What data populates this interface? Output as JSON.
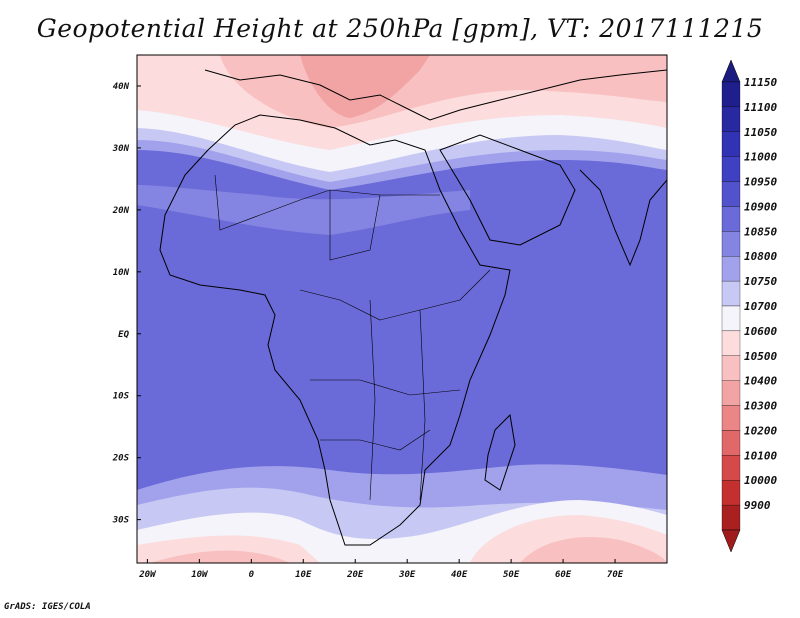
{
  "title": "Geopotential Height at 250hPa [gpm], VT: 2017111215",
  "footer": "GrADS: IGES/COLA",
  "map": {
    "lon_range": [
      -22,
      80
    ],
    "lat_range": [
      -37,
      45
    ],
    "lat_ticks": [
      {
        "value": 40,
        "label": "40N"
      },
      {
        "value": 30,
        "label": "30N"
      },
      {
        "value": 20,
        "label": "20N"
      },
      {
        "value": 10,
        "label": "10N"
      },
      {
        "value": 0,
        "label": "EQ"
      },
      {
        "value": -10,
        "label": "10S"
      },
      {
        "value": -20,
        "label": "20S"
      },
      {
        "value": -30,
        "label": "30S"
      }
    ],
    "lon_ticks": [
      {
        "value": -20,
        "label": "20W"
      },
      {
        "value": -10,
        "label": "10W"
      },
      {
        "value": 0,
        "label": "0"
      },
      {
        "value": 10,
        "label": "10E"
      },
      {
        "value": 20,
        "label": "20E"
      },
      {
        "value": 30,
        "label": "30E"
      },
      {
        "value": 40,
        "label": "40E"
      },
      {
        "value": 50,
        "label": "50E"
      },
      {
        "value": 60,
        "label": "60E"
      },
      {
        "value": 70,
        "label": "70E"
      }
    ]
  },
  "colorbar": {
    "levels": [
      {
        "label": "11150",
        "color": "#1e1e8c"
      },
      {
        "label": "11100",
        "color": "#2828a0"
      },
      {
        "label": "11050",
        "color": "#3232b4"
      },
      {
        "label": "11000",
        "color": "#4040c2"
      },
      {
        "label": "10950",
        "color": "#5252cc"
      },
      {
        "label": "10900",
        "color": "#6a6ad8"
      },
      {
        "label": "10850",
        "color": "#8484e2"
      },
      {
        "label": "10800",
        "color": "#a2a2ec"
      },
      {
        "label": "10750",
        "color": "#c8c8f4"
      },
      {
        "label": "10700",
        "color": "#f4f4fa"
      },
      {
        "label": "10600",
        "color": "#fcdcdc"
      },
      {
        "label": "10500",
        "color": "#f8c0c0"
      },
      {
        "label": "10400",
        "color": "#f2a4a4"
      },
      {
        "label": "10300",
        "color": "#ea8686"
      },
      {
        "label": "10200",
        "color": "#e06868"
      },
      {
        "label": "10100",
        "color": "#d44a4a"
      },
      {
        "label": "10000",
        "color": "#c43030"
      },
      {
        "label": "9900",
        "color": "#a82020"
      }
    ],
    "top_arrow_color": "#1c1c80",
    "bottom_arrow_color": "#a01c1c"
  },
  "fill_colors": {
    "ocean_far_south": "#f8c0c0",
    "south_white": "#f4f4fa",
    "south_pale": "#c8c8f4",
    "south_light": "#a2a2ec",
    "tropics": "#6a6ad8",
    "tropics_light": "#8484e2",
    "north_light": "#a2a2ec",
    "north_pale": "#c8c8f4",
    "north_white": "#f4f4fa",
    "north_pink": "#fcdcdc",
    "north_red": "#f8c0c0",
    "north_deep": "#f2a4a4"
  }
}
